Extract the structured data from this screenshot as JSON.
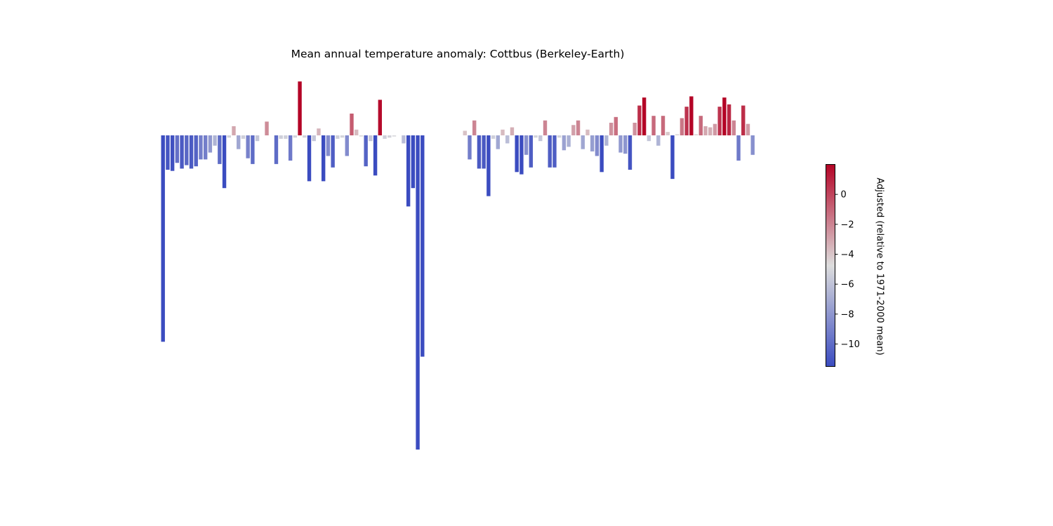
{
  "chart_data": {
    "type": "bar",
    "title": "Mean annual temperature anomaly: Cottbus (Berkeley-Earth)",
    "xlabel": "",
    "ylabel": "",
    "axes_visible": false,
    "grid": false,
    "gap_indices": [
      55,
      56,
      57,
      58,
      59,
      60,
      61,
      62
    ],
    "values": [
      -9.0,
      -1.5,
      -1.55,
      -1.2,
      -1.45,
      -1.3,
      -1.45,
      -1.35,
      -1.05,
      -1.05,
      -0.75,
      -0.45,
      -1.25,
      -2.3,
      -0.1,
      0.4,
      -0.6,
      -0.15,
      -1.0,
      -1.25,
      -0.25,
      0.0,
      0.6,
      0.0,
      -1.25,
      -0.15,
      -0.15,
      -1.1,
      -0.1,
      2.35,
      -0.1,
      -2.0,
      -0.25,
      0.3,
      -2.0,
      -0.9,
      -1.4,
      -0.15,
      -0.1,
      -0.9,
      0.95,
      0.25,
      -0.05,
      -1.35,
      -0.25,
      -1.75,
      1.55,
      -0.15,
      -0.1,
      -0.05,
      0.0,
      -0.35,
      -3.1,
      -2.3,
      -13.7,
      -9.65,
      null,
      null,
      null,
      null,
      null,
      null,
      null,
      null,
      0.2,
      -1.05,
      0.65,
      -1.45,
      -1.45,
      -2.65,
      -0.15,
      -0.6,
      0.25,
      -0.35,
      0.35,
      -1.6,
      -1.7,
      -0.85,
      -1.4,
      -0.1,
      -0.25,
      0.65,
      -1.4,
      -1.4,
      -0.1,
      -0.65,
      -0.5,
      0.45,
      0.65,
      -0.6,
      0.25,
      -0.7,
      -0.9,
      -1.6,
      -0.45,
      0.55,
      0.8,
      -0.75,
      -0.8,
      -1.5,
      0.55,
      1.3,
      1.65,
      -0.25,
      0.85,
      -0.45,
      0.85,
      0.15,
      -1.9,
      0.05,
      0.75,
      1.25,
      1.7,
      0.05,
      0.85,
      0.4,
      0.35,
      0.5,
      1.25,
      1.65,
      1.35,
      0.65,
      -1.1,
      1.3,
      0.5,
      -0.85
    ],
    "colorbar": {
      "label": "Adjusted (relative to 1971-2000 mean)",
      "ticks": [
        "0",
        "−2",
        "−4",
        "−6",
        "−8",
        "−10"
      ],
      "tick_values": [
        0,
        -2,
        -4,
        -6,
        -8,
        -10
      ],
      "vmin": -11.5,
      "vmax": 2.0,
      "colormap": "coolwarm",
      "color_low": "#3b4cc0",
      "color_mid": "#dddddd",
      "color_high": "#b40426"
    }
  }
}
